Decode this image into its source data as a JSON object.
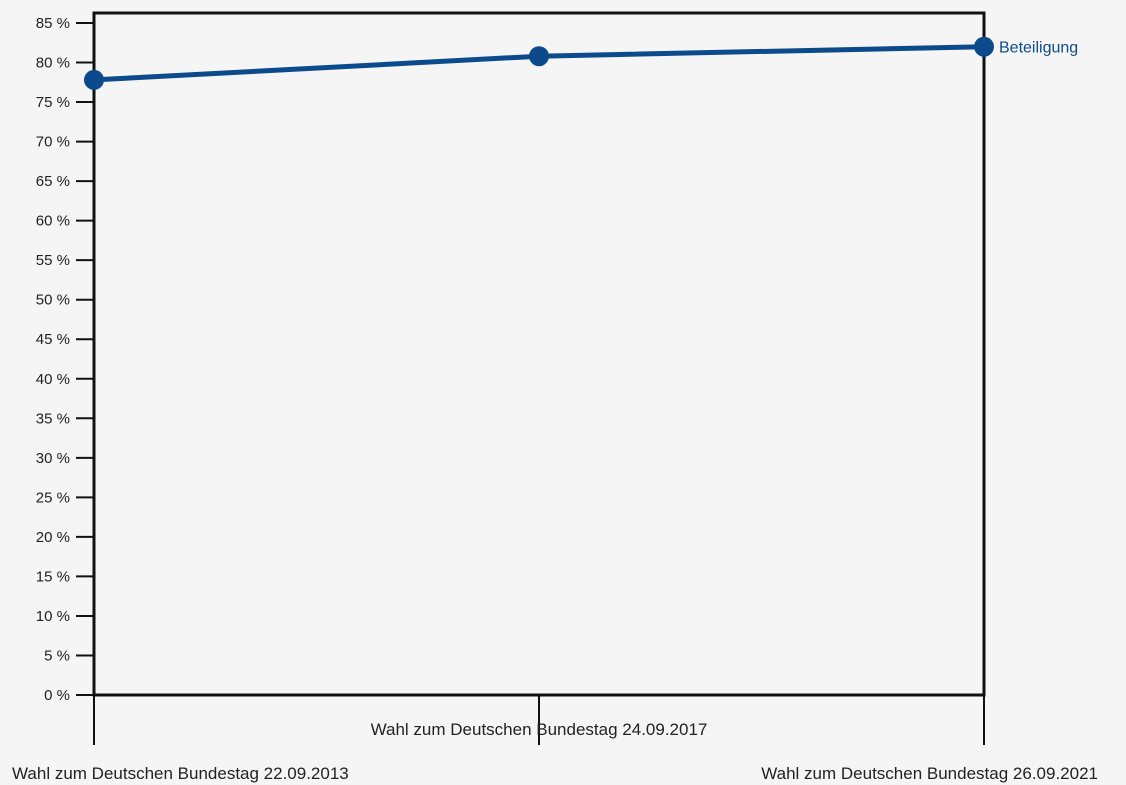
{
  "colors": {
    "background": "#f5f5f5",
    "axis": "#111111",
    "series": "#0b4a8b"
  },
  "chart_data": {
    "type": "line",
    "title": "",
    "xlabel": "",
    "ylabel": "",
    "categories": [
      "Wahl zum Deutschen Bundestag 22.09.2013",
      "Wahl zum Deutschen Bundestag 24.09.2017",
      "Wahl zum Deutschen Bundestag 26.09.2021"
    ],
    "series": [
      {
        "name": "Beteiligung",
        "values": [
          77.8,
          80.8,
          82.0
        ]
      }
    ],
    "ylim": [
      0,
      85
    ],
    "yticks": [
      {
        "v": 0,
        "label": "0 %"
      },
      {
        "v": 5,
        "label": "5 %"
      },
      {
        "v": 10,
        "label": "10 %"
      },
      {
        "v": 15,
        "label": "15 %"
      },
      {
        "v": 20,
        "label": "20 %"
      },
      {
        "v": 25,
        "label": "25 %"
      },
      {
        "v": 30,
        "label": "30 %"
      },
      {
        "v": 35,
        "label": "35 %"
      },
      {
        "v": 40,
        "label": "40 %"
      },
      {
        "v": 45,
        "label": "45 %"
      },
      {
        "v": 50,
        "label": "50 %"
      },
      {
        "v": 55,
        "label": "55 %"
      },
      {
        "v": 60,
        "label": "60 %"
      },
      {
        "v": 65,
        "label": "65 %"
      },
      {
        "v": 70,
        "label": "70 %"
      },
      {
        "v": 75,
        "label": "75 %"
      },
      {
        "v": 80,
        "label": "80 %"
      },
      {
        "v": 85,
        "label": "85 %"
      }
    ],
    "grid": false,
    "legend": "end-of-line label"
  }
}
